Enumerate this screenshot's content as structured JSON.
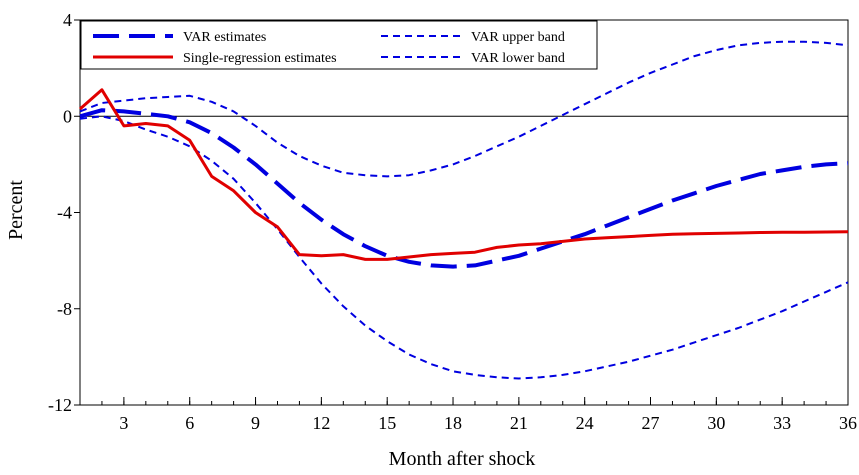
{
  "chart_data": {
    "type": "line",
    "title": "",
    "xlabel": "Month after shock",
    "ylabel": "Percent",
    "xlim": [
      1,
      36
    ],
    "ylim": [
      -12,
      4
    ],
    "x_ticks": [
      3,
      6,
      9,
      12,
      15,
      18,
      21,
      24,
      27,
      30,
      33,
      36
    ],
    "x_tick_labels": [
      "3",
      "6",
      "9",
      "12",
      "15",
      "18",
      "21",
      "24",
      "27",
      "30",
      "33",
      "36"
    ],
    "y_ticks": [
      4,
      0,
      -4,
      -8,
      -12
    ],
    "y_tick_labels": [
      "4",
      "0",
      "-4",
      "-8",
      "-12"
    ],
    "grid": false,
    "zero_line": true,
    "legend_position": "top-left",
    "x": [
      1,
      2,
      3,
      4,
      5,
      6,
      7,
      8,
      9,
      10,
      11,
      12,
      13,
      14,
      15,
      16,
      17,
      18,
      19,
      20,
      21,
      22,
      23,
      24,
      25,
      26,
      27,
      28,
      29,
      30,
      31,
      32,
      33,
      34,
      35,
      36
    ],
    "series": [
      {
        "name": "VAR estimates",
        "color": "#0000e0",
        "style": "long-dash",
        "values": [
          0.0,
          0.25,
          0.2,
          0.1,
          0.0,
          -0.25,
          -0.7,
          -1.3,
          -2.0,
          -2.8,
          -3.6,
          -4.3,
          -4.9,
          -5.4,
          -5.8,
          -6.05,
          -6.2,
          -6.25,
          -6.2,
          -6.0,
          -5.8,
          -5.5,
          -5.2,
          -4.9,
          -4.55,
          -4.2,
          -3.85,
          -3.5,
          -3.2,
          -2.9,
          -2.65,
          -2.4,
          -2.25,
          -2.1,
          -2.0,
          -1.95
        ]
      },
      {
        "name": "Single-regression estimates",
        "color": "#e00000",
        "style": "solid",
        "values": [
          0.3,
          1.1,
          -0.4,
          -0.3,
          -0.4,
          -1.0,
          -2.5,
          -3.1,
          -4.0,
          -4.6,
          -5.75,
          -5.8,
          -5.75,
          -5.95,
          -5.95,
          -5.85,
          -5.75,
          -5.7,
          -5.65,
          -5.45,
          -5.35,
          -5.3,
          -5.2,
          -5.1,
          -5.05,
          -5.0,
          -4.95,
          -4.9,
          -4.88,
          -4.87,
          -4.85,
          -4.83,
          -4.82,
          -4.82,
          -4.81,
          -4.8
        ]
      },
      {
        "name": "VAR upper band",
        "color": "#0000e0",
        "style": "short-dash",
        "values": [
          0.2,
          0.55,
          0.65,
          0.75,
          0.8,
          0.85,
          0.6,
          0.2,
          -0.4,
          -1.1,
          -1.65,
          -2.05,
          -2.35,
          -2.45,
          -2.5,
          -2.45,
          -2.25,
          -2.0,
          -1.65,
          -1.25,
          -0.85,
          -0.4,
          0.05,
          0.5,
          0.95,
          1.4,
          1.8,
          2.15,
          2.5,
          2.75,
          2.95,
          3.05,
          3.1,
          3.1,
          3.05,
          2.95
        ]
      },
      {
        "name": "VAR lower band",
        "color": "#0000e0",
        "style": "short-dash",
        "values": [
          -0.1,
          0.0,
          -0.2,
          -0.55,
          -0.85,
          -1.25,
          -1.85,
          -2.6,
          -3.6,
          -4.7,
          -5.85,
          -6.95,
          -7.9,
          -8.7,
          -9.35,
          -9.9,
          -10.3,
          -10.6,
          -10.75,
          -10.85,
          -10.9,
          -10.85,
          -10.75,
          -10.6,
          -10.4,
          -10.2,
          -9.95,
          -9.7,
          -9.4,
          -9.1,
          -8.8,
          -8.45,
          -8.1,
          -7.7,
          -7.3,
          -6.9
        ]
      }
    ]
  }
}
